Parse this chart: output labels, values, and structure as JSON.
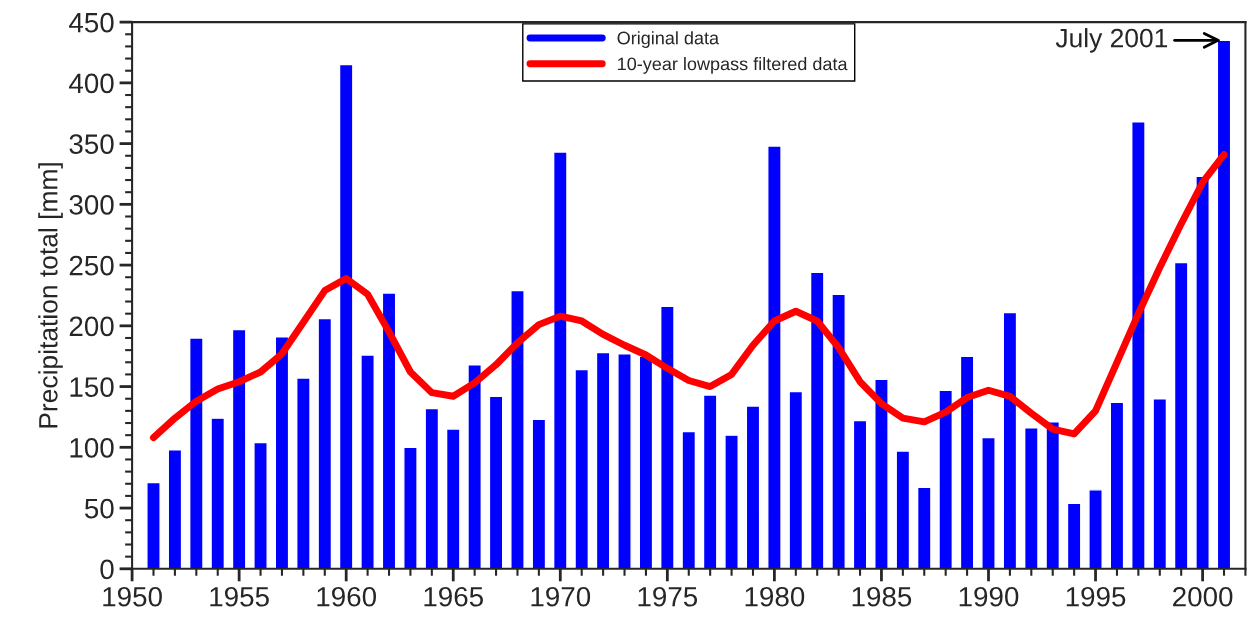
{
  "chart_data": {
    "type": "bar",
    "ylabel": "Precipitation total [mm]",
    "x": [
      1951,
      1952,
      1953,
      1954,
      1955,
      1956,
      1957,
      1958,
      1959,
      1960,
      1961,
      1962,
      1963,
      1964,
      1965,
      1966,
      1967,
      1968,
      1969,
      1970,
      1971,
      1972,
      1973,
      1974,
      1975,
      1976,
      1977,
      1978,
      1979,
      1980,
      1981,
      1982,
      1983,
      1984,
      1985,
      1986,
      1987,
      1988,
      1989,
      1990,
      1991,
      1992,
      1993,
      1994,
      1995,
      1996,
      1997,
      1998,
      1999,
      2000,
      2001
    ],
    "series": [
      {
        "name": "Original data",
        "color": "#0000ff",
        "values": [
          71,
          98,
          190,
          124,
          197,
          104,
          191,
          157,
          206,
          415,
          176,
          227,
          100,
          132,
          115,
          168,
          142,
          229,
          123,
          343,
          164,
          178,
          177,
          175,
          216,
          113,
          143,
          110,
          134,
          348,
          146,
          244,
          226,
          122,
          156,
          97,
          67,
          147,
          175,
          108,
          211,
          116,
          121,
          54,
          65,
          137,
          368,
          140,
          252,
          323,
          435
        ]
      },
      {
        "name": "10-year lowpass filtered data",
        "type": "line",
        "color": "#ff0000",
        "values": [
          108,
          124,
          138,
          148,
          154,
          162,
          177,
          203,
          229,
          239,
          226,
          195,
          162,
          145,
          142,
          153,
          168,
          186,
          201,
          208,
          204,
          193,
          184,
          176,
          165,
          155,
          150,
          160,
          184,
          204,
          212,
          204,
          182,
          154,
          136,
          124,
          121,
          129,
          141,
          147,
          142,
          128,
          115,
          111,
          130,
          170,
          210,
          248,
          284,
          318,
          341
        ]
      }
    ],
    "xlim": [
      1950,
      2002
    ],
    "xticks": [
      1950,
      1955,
      1960,
      1965,
      1970,
      1975,
      1980,
      1985,
      1990,
      1995,
      2000
    ],
    "ylim": [
      0,
      450
    ],
    "yticks": [
      0,
      50,
      100,
      150,
      200,
      250,
      300,
      350,
      400,
      450
    ],
    "grid": false,
    "legend": "top",
    "annotations": [
      {
        "text": "July 2001",
        "x": 2001,
        "y": 435
      }
    ]
  }
}
